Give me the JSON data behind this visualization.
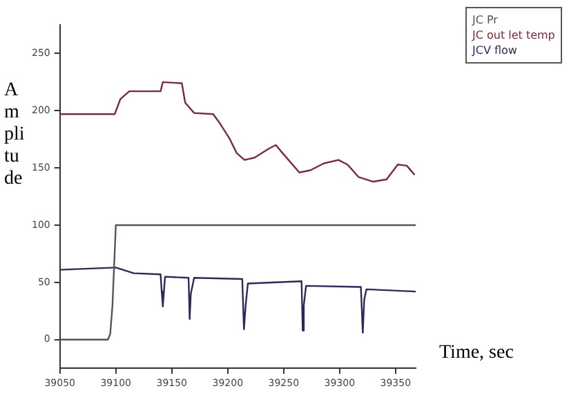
{
  "chart_data": {
    "type": "line",
    "xlabel": "Time, sec",
    "ylabel": "Amplitude",
    "xlim": [
      39050,
      39368
    ],
    "xticks": [
      39050,
      39100,
      39150,
      39200,
      39250,
      39300,
      39350
    ],
    "ylim": [
      -25,
      275
    ],
    "yticks": [
      0,
      50,
      100,
      150,
      200,
      250
    ],
    "grid": false,
    "legend": "top right",
    "marker": "none",
    "line_style": "solid",
    "series": [
      {
        "name": "JC Pr",
        "color": "#555555",
        "x": [
          39050,
          39093,
          39095,
          39097,
          39100,
          39368
        ],
        "values": [
          0,
          0,
          5,
          30,
          100,
          100
        ]
      },
      {
        "name": "JC out let temp",
        "color": "#7a2a3a",
        "x": [
          39050,
          39099,
          39104,
          39112,
          39140,
          39142,
          39159,
          39162,
          39170,
          39187,
          39193,
          39202,
          39208,
          39215,
          39224,
          39237,
          39243,
          39249,
          39264,
          39274,
          39286,
          39299,
          39307,
          39317,
          39330,
          39342,
          39352,
          39360,
          39367
        ],
        "values": [
          197,
          197,
          210,
          217,
          217,
          225,
          224,
          207,
          198,
          197,
          189,
          175,
          163,
          157,
          159,
          167,
          170,
          163,
          146,
          148,
          154,
          157,
          153,
          142,
          138,
          140,
          153,
          152,
          144
        ]
      },
      {
        "name": "JCV flow",
        "color": "#2a2a5a",
        "x": [
          39050,
          39100,
          39116,
          39140,
          39141,
          39142,
          39144,
          39165,
          39166,
          39167,
          39170,
          39213,
          39214.5,
          39216,
          39218,
          39266,
          39267,
          39268,
          39270,
          39319,
          39320.7,
          39322,
          39324,
          39368
        ],
        "values": [
          61,
          63,
          58,
          57,
          42,
          29,
          55,
          54,
          18,
          40,
          54,
          53,
          9,
          30,
          49,
          51,
          8,
          30,
          47,
          46,
          6,
          35,
          44,
          42
        ]
      }
    ]
  }
}
